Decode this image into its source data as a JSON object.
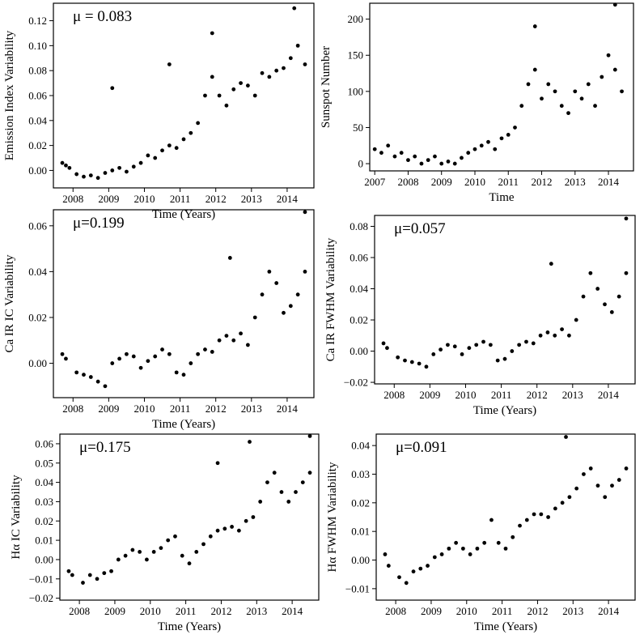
{
  "chart_data": [
    {
      "type": "scatter",
      "annotation": "μ = 0.083",
      "xlabel": "Time (Years)",
      "ylabel": "Emission Index Variability",
      "xlim": [
        2007.45,
        2014.75
      ],
      "ylim": [
        -0.014,
        0.134
      ],
      "xticks": [
        2008,
        2009,
        2010,
        2011,
        2012,
        2013,
        2014
      ],
      "xtick_labels": [
        "2008",
        "2009",
        "2010",
        "2011",
        "2012",
        "2013",
        "2014"
      ],
      "yticks": [
        0.0,
        0.02,
        0.04,
        0.06,
        0.08,
        0.1,
        0.12
      ],
      "ytick_labels": [
        "0.00",
        "0.02",
        "0.04",
        "0.06",
        "0.08",
        "0.10",
        "0.12"
      ],
      "x": [
        2007.7,
        2007.8,
        2007.9,
        2008.1,
        2008.3,
        2008.5,
        2008.7,
        2008.9,
        2009.1,
        2009.3,
        2009.5,
        2009.7,
        2009.9,
        2010.1,
        2010.3,
        2010.5,
        2010.7,
        2010.9,
        2011.1,
        2011.3,
        2011.5,
        2011.7,
        2011.9,
        2012.1,
        2012.3,
        2012.5,
        2012.7,
        2012.9,
        2013.1,
        2013.3,
        2013.5,
        2013.7,
        2013.9,
        2014.1,
        2014.3,
        2014.5,
        2009.1,
        2010.7,
        2011.9,
        2014.2
      ],
      "y": [
        0.006,
        0.004,
        0.002,
        -0.003,
        -0.005,
        -0.004,
        -0.006,
        -0.002,
        0.0,
        0.002,
        -0.001,
        0.003,
        0.006,
        0.012,
        0.01,
        0.016,
        0.02,
        0.018,
        0.025,
        0.03,
        0.038,
        0.06,
        0.075,
        0.06,
        0.052,
        0.065,
        0.07,
        0.068,
        0.06,
        0.078,
        0.075,
        0.08,
        0.082,
        0.09,
        0.1,
        0.085,
        0.066,
        0.085,
        0.11,
        0.13
      ]
    },
    {
      "type": "scatter",
      "annotation": "",
      "xlabel": "Time",
      "ylabel": "Sunspot Number",
      "xlim": [
        2006.85,
        2014.75
      ],
      "ylim": [
        -10,
        222
      ],
      "xticks": [
        2007,
        2008,
        2009,
        2010,
        2011,
        2012,
        2013,
        2014
      ],
      "xtick_labels": [
        "2007",
        "2008",
        "2009",
        "2010",
        "2011",
        "2012",
        "2013",
        "2014"
      ],
      "yticks": [
        0,
        50,
        100,
        150,
        200
      ],
      "ytick_labels": [
        "0",
        "50",
        "100",
        "150",
        "200"
      ],
      "x": [
        2007.0,
        2007.2,
        2007.4,
        2007.6,
        2007.8,
        2008.0,
        2008.2,
        2008.4,
        2008.6,
        2008.8,
        2009.0,
        2009.2,
        2009.4,
        2009.6,
        2009.8,
        2010.0,
        2010.2,
        2010.4,
        2010.6,
        2010.8,
        2011.0,
        2011.2,
        2011.4,
        2011.6,
        2011.8,
        2012.0,
        2012.2,
        2012.4,
        2012.6,
        2012.8,
        2013.0,
        2013.2,
        2013.4,
        2013.6,
        2013.8,
        2014.0,
        2014.2,
        2014.4,
        2011.8,
        2014.2
      ],
      "y": [
        20,
        15,
        25,
        10,
        15,
        5,
        10,
        0,
        5,
        10,
        0,
        3,
        0,
        8,
        15,
        20,
        25,
        30,
        20,
        35,
        40,
        50,
        80,
        110,
        130,
        90,
        110,
        100,
        80,
        70,
        100,
        90,
        110,
        80,
        120,
        150,
        130,
        100,
        190,
        220
      ]
    },
    {
      "type": "scatter",
      "annotation": "μ=0.199",
      "xlabel": "Time (Years)",
      "ylabel": "Ca IR IC Variability",
      "xlim": [
        2007.45,
        2014.75
      ],
      "ylim": [
        -0.015,
        0.067
      ],
      "xticks": [
        2008,
        2009,
        2010,
        2011,
        2012,
        2013,
        2014
      ],
      "xtick_labels": [
        "2008",
        "2009",
        "2010",
        "2011",
        "2012",
        "2013",
        "2014"
      ],
      "yticks": [
        0.0,
        0.02,
        0.04,
        0.06
      ],
      "ytick_labels": [
        "0.00",
        "0.02",
        "0.04",
        "0.06"
      ],
      "x": [
        2007.7,
        2007.8,
        2008.1,
        2008.3,
        2008.5,
        2008.7,
        2008.9,
        2009.1,
        2009.3,
        2009.5,
        2009.7,
        2009.9,
        2010.1,
        2010.3,
        2010.5,
        2010.7,
        2010.9,
        2011.1,
        2011.3,
        2011.5,
        2011.7,
        2011.9,
        2012.1,
        2012.3,
        2012.5,
        2012.7,
        2012.9,
        2013.1,
        2013.3,
        2013.5,
        2013.7,
        2013.9,
        2014.1,
        2014.3,
        2014.5,
        2014.5,
        2012.4
      ],
      "y": [
        0.004,
        0.002,
        -0.004,
        -0.005,
        -0.006,
        -0.008,
        -0.01,
        0.0,
        0.002,
        0.004,
        0.003,
        -0.002,
        0.001,
        0.003,
        0.006,
        0.004,
        -0.004,
        -0.005,
        0.0,
        0.004,
        0.006,
        0.005,
        0.01,
        0.012,
        0.01,
        0.013,
        0.008,
        0.02,
        0.03,
        0.04,
        0.035,
        0.022,
        0.025,
        0.03,
        0.04,
        0.066,
        0.046
      ]
    },
    {
      "type": "scatter",
      "annotation": "μ=0.057",
      "xlabel": "Time (Years)",
      "ylabel": "Ca IR FWHM Variability",
      "xlim": [
        2007.45,
        2014.75
      ],
      "ylim": [
        -0.021,
        0.087
      ],
      "xticks": [
        2008,
        2009,
        2010,
        2011,
        2012,
        2013,
        2014
      ],
      "xtick_labels": [
        "2008",
        "2009",
        "2010",
        "2011",
        "2012",
        "2013",
        "2014"
      ],
      "yticks": [
        -0.02,
        0.0,
        0.02,
        0.04,
        0.06,
        0.08
      ],
      "ytick_labels": [
        "−0.02",
        "0.00",
        "0.02",
        "0.04",
        "0.06",
        "0.08"
      ],
      "x": [
        2007.7,
        2007.8,
        2008.1,
        2008.3,
        2008.5,
        2008.7,
        2008.9,
        2009.1,
        2009.3,
        2009.5,
        2009.7,
        2009.9,
        2010.1,
        2010.3,
        2010.5,
        2010.7,
        2010.9,
        2011.1,
        2011.3,
        2011.5,
        2011.7,
        2011.9,
        2012.1,
        2012.3,
        2012.5,
        2012.7,
        2012.9,
        2013.1,
        2013.3,
        2013.5,
        2013.7,
        2013.9,
        2014.1,
        2014.3,
        2014.5,
        2014.5,
        2012.4
      ],
      "y": [
        0.005,
        0.002,
        -0.004,
        -0.006,
        -0.007,
        -0.008,
        -0.01,
        -0.002,
        0.001,
        0.004,
        0.003,
        -0.002,
        0.002,
        0.004,
        0.006,
        0.004,
        -0.006,
        -0.005,
        0.0,
        0.004,
        0.006,
        0.005,
        0.01,
        0.012,
        0.01,
        0.014,
        0.01,
        0.02,
        0.035,
        0.05,
        0.04,
        0.03,
        0.025,
        0.035,
        0.05,
        0.085,
        0.056
      ]
    },
    {
      "type": "scatter",
      "annotation": "μ=0.175",
      "xlabel": "Time (Years)",
      "ylabel": "Hα IC Variability",
      "xlim": [
        2007.45,
        2014.75
      ],
      "ylim": [
        -0.021,
        0.065
      ],
      "xticks": [
        2008,
        2009,
        2010,
        2011,
        2012,
        2013,
        2014
      ],
      "xtick_labels": [
        "2008",
        "2009",
        "2010",
        "2011",
        "2012",
        "2013",
        "2014"
      ],
      "yticks": [
        -0.02,
        -0.01,
        0.0,
        0.01,
        0.02,
        0.03,
        0.04,
        0.05,
        0.06
      ],
      "ytick_labels": [
        "−0.02",
        "−0.01",
        "0.00",
        "0.01",
        "0.02",
        "0.03",
        "0.04",
        "0.05",
        "0.06"
      ],
      "x": [
        2007.7,
        2007.8,
        2008.1,
        2008.3,
        2008.5,
        2008.7,
        2008.9,
        2009.1,
        2009.3,
        2009.5,
        2009.7,
        2009.9,
        2010.1,
        2010.3,
        2010.5,
        2010.7,
        2010.9,
        2011.1,
        2011.3,
        2011.5,
        2011.7,
        2011.9,
        2012.1,
        2012.3,
        2012.5,
        2012.7,
        2012.9,
        2013.1,
        2013.3,
        2013.5,
        2013.7,
        2013.9,
        2014.1,
        2014.3,
        2014.5,
        2014.5,
        2011.9,
        2012.8
      ],
      "y": [
        -0.006,
        -0.008,
        -0.012,
        -0.008,
        -0.01,
        -0.007,
        -0.006,
        0.0,
        0.002,
        0.005,
        0.004,
        0.0,
        0.004,
        0.006,
        0.01,
        0.012,
        0.002,
        -0.002,
        0.004,
        0.008,
        0.012,
        0.015,
        0.016,
        0.017,
        0.015,
        0.02,
        0.022,
        0.03,
        0.04,
        0.045,
        0.035,
        0.03,
        0.035,
        0.04,
        0.045,
        0.064,
        0.05,
        0.061
      ]
    },
    {
      "type": "scatter",
      "annotation": "μ=0.091",
      "xlabel": "Time (Years)",
      "ylabel": "Hα FWHM Variability",
      "xlim": [
        2007.45,
        2014.75
      ],
      "ylim": [
        -0.014,
        0.044
      ],
      "xticks": [
        2008,
        2009,
        2010,
        2011,
        2012,
        2013,
        2014
      ],
      "xtick_labels": [
        "2008",
        "2009",
        "2010",
        "2011",
        "2012",
        "2013",
        "2014"
      ],
      "yticks": [
        -0.01,
        0.0,
        0.01,
        0.02,
        0.03,
        0.04
      ],
      "ytick_labels": [
        "−0.01",
        "0.00",
        "0.01",
        "0.02",
        "0.03",
        "0.04"
      ],
      "x": [
        2007.7,
        2007.8,
        2008.1,
        2008.3,
        2008.5,
        2008.7,
        2008.9,
        2009.1,
        2009.3,
        2009.5,
        2009.7,
        2009.9,
        2010.1,
        2010.3,
        2010.5,
        2010.7,
        2010.9,
        2011.1,
        2011.3,
        2011.5,
        2011.7,
        2011.9,
        2012.1,
        2012.3,
        2012.5,
        2012.7,
        2012.9,
        2013.1,
        2013.3,
        2013.5,
        2013.7,
        2013.9,
        2014.1,
        2014.3,
        2014.5,
        2012.8
      ],
      "y": [
        0.002,
        -0.002,
        -0.006,
        -0.008,
        -0.004,
        -0.003,
        -0.002,
        0.001,
        0.002,
        0.004,
        0.006,
        0.004,
        0.002,
        0.004,
        0.006,
        0.014,
        0.006,
        0.004,
        0.008,
        0.012,
        0.014,
        0.016,
        0.016,
        0.015,
        0.018,
        0.02,
        0.022,
        0.025,
        0.03,
        0.032,
        0.026,
        0.022,
        0.026,
        0.028,
        0.032,
        0.043
      ]
    }
  ]
}
